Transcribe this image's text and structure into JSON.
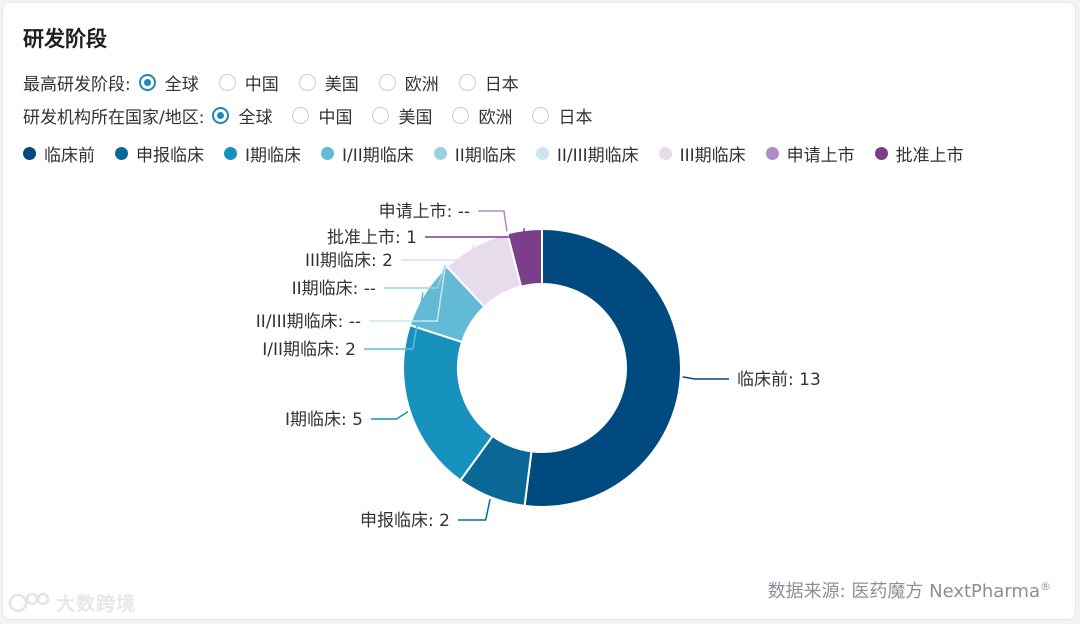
{
  "title": "研发阶段",
  "filters": [
    {
      "label": "最高研发阶段:",
      "options": [
        "全球",
        "中国",
        "美国",
        "欧洲",
        "日本"
      ],
      "selected": 0
    },
    {
      "label": "研发机构所在国家/地区:",
      "options": [
        "全球",
        "中国",
        "美国",
        "欧洲",
        "日本"
      ],
      "selected": 0
    }
  ],
  "legend": [
    {
      "label": "临床前",
      "color": "#004a7f"
    },
    {
      "label": "申报临床",
      "color": "#0a6896"
    },
    {
      "label": "I期临床",
      "color": "#1791bd"
    },
    {
      "label": "I/II期临床",
      "color": "#62bad6"
    },
    {
      "label": "II期临床",
      "color": "#9ad2e4"
    },
    {
      "label": "II/III期临床",
      "color": "#cbe6f0"
    },
    {
      "label": "III期临床",
      "color": "#e6dcec"
    },
    {
      "label": "申请上市",
      "color": "#b08cc4"
    },
    {
      "label": "批准上市",
      "color": "#7b3f89"
    }
  ],
  "chart_data": {
    "type": "pie",
    "variant": "donut",
    "categories": [
      "临床前",
      "申报临床",
      "I期临床",
      "I/II期临床",
      "II/III期临床",
      "II期临床",
      "III期临床",
      "申请上市",
      "批准上市"
    ],
    "values": [
      13,
      2,
      5,
      2,
      null,
      null,
      2,
      null,
      1
    ],
    "labels": [
      "临床前: 13",
      "申报临床: 2",
      "I期临床: 5",
      "I/II期临床: 2",
      "II/III期临床: --",
      "II期临床: --",
      "III期临床: 2",
      "申请上市: --",
      "批准上市: 1"
    ],
    "colors": [
      "#004a7f",
      "#0a6896",
      "#1791bd",
      "#62bad6",
      "#cbe6f0",
      "#9ad2e4",
      "#e6dcec",
      "#b08cc4",
      "#7b3f89"
    ]
  },
  "source": {
    "text": "数据来源:  医药魔方 NextPharma",
    "mark": "®"
  },
  "watermark": {
    "text": "大数跨境"
  }
}
